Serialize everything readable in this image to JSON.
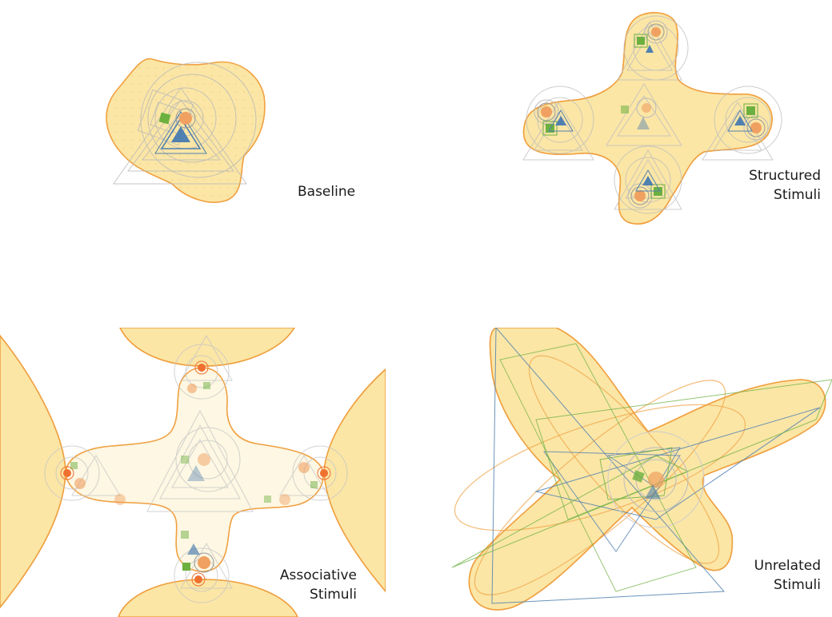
{
  "panels": [
    {
      "id": "baseline",
      "label_lines": [
        "Baseline"
      ]
    },
    {
      "id": "structured",
      "label_lines": [
        "Structured",
        "Stimuli"
      ]
    },
    {
      "id": "associative",
      "label_lines": [
        "Associative",
        "Stimuli"
      ]
    },
    {
      "id": "unrelated",
      "label_lines": [
        "Unrelated ",
        "Stimuli"
      ]
    }
  ],
  "colors": {
    "region_fill": "#fbe6a6",
    "region_fill_light": "#fdf7e3",
    "region_stroke": "#f0a040",
    "triangle": "#5080b0",
    "square": "#6cb040",
    "circle": "#f0a060",
    "contour": "#b8b8b8"
  },
  "icons": [
    "triangle-stimulus-icon",
    "square-stimulus-icon",
    "circle-stimulus-icon"
  ]
}
